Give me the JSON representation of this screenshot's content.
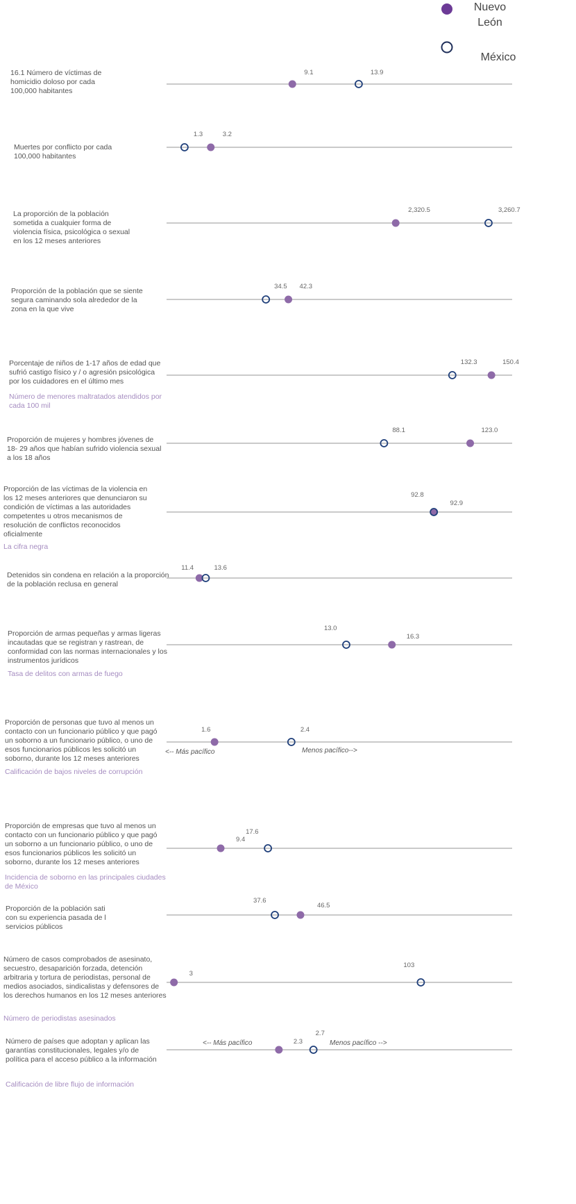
{
  "legend": [
    "Nuevo León",
    "México"
  ],
  "rows": [
    {
      "label": "16.1 Número de víctimas de homicidio doloso por cada 100,000 habitantes",
      "values": [
        9.1,
        13.9
      ],
      "xlim": [
        0,
        25
      ]
    },
    {
      "label": "Muertes por conflicto por cada 100,000 habitantes",
      "values": [
        3.2,
        1.3
      ],
      "xlim": [
        0,
        25
      ]
    },
    {
      "label": "La proporción de la población sometida a cualquier forma de violencia física, psicológica o sexual en los 12 meses anteriores",
      "values": [
        2320.5,
        3260.7
      ],
      "value_labels": [
        "2,320.5",
        "3,260.7"
      ],
      "xlim": [
        0,
        3500
      ]
    },
    {
      "label": "Proporción de la población que se siente segura caminando sola alrededor de la zona en la que vive",
      "values": [
        42.3,
        34.5
      ],
      "xlim": [
        0,
        120
      ]
    },
    {
      "label": "Porcentaje de niños de 1-17 años de edad que sufrió castigo físico y / o agresión psicológica por los cuidadores en el último mes",
      "sublabel": "Número de menores maltratados atendidos por cada 100 mil",
      "values": [
        150.4,
        132.3
      ],
      "xlim": [
        0,
        160
      ]
    },
    {
      "label": "Proporción de mujeres y hombres jóvenes de 18- 29 años que habían sufrido violencia sexual a los 18 años",
      "values": [
        123.0,
        88.1
      ],
      "value_labels": [
        "123.0",
        "88.1"
      ],
      "xlim": [
        0,
        140
      ]
    },
    {
      "label": "Proporción de las víctimas de la violencia en los 12 meses anteriores que denunciaron su condición de víctimas a las autoridades competentes u otros mecanismos de resolución de conflictos reconocidos oficialmente",
      "sublabel": "La cifra negra",
      "values": [
        92.9,
        92.8
      ],
      "xlim": [
        0,
        120
      ]
    },
    {
      "label": "Detenidos sin condena en relación a la proporción de la población reclusa en general",
      "values": [
        11.4,
        13.6
      ],
      "xlim": [
        0,
        120
      ]
    },
    {
      "label": "Proporción de armas pequeñas y armas ligeras incautadas que se registran y rastrean, de conformidad con las normas internacionales y los instrumentos jurídicos",
      "sublabel": "Tasa de delitos con armas de fuego",
      "values": [
        16.3,
        13.0
      ],
      "value_labels": [
        "16.3",
        "13.0"
      ],
      "xlim": [
        0,
        25
      ]
    },
    {
      "label": "Proporción de personas que tuvo al menos un contacto con un funcionario público y que pagó un soborno a un funcionario público, o uno de esos funcionarios públicos les solicitó un soborno, durante los 12 meses anteriores",
      "sublabel": "Calificación de bajos niveles de corrupción",
      "values": [
        1.6,
        2.4
      ],
      "xlim": [
        1.1,
        4.7
      ],
      "annotations": [
        "<-- Más pacífico",
        "Menos pacífico-->"
      ]
    },
    {
      "label": "Proporción de empresas que tuvo al menos un contacto con un funcionario público y que pagó un soborno a un funcionario público, o uno de esos funcionarios públicos les solicitó un soborno, durante los 12 meses anteriores",
      "sublabel": "Incidencia de soborno en las principales ciudades de México",
      "values": [
        9.4,
        17.6
      ],
      "xlim": [
        0,
        60
      ]
    },
    {
      "label": "Proporción de la población sati con su experiencia pasada de l servicios públicos",
      "values": [
        46.5,
        37.6
      ],
      "xlim": [
        0,
        120
      ]
    },
    {
      "label": "Número de casos comprobados de asesinato, secuestro, desaparición forzada, detención arbitraria y tortura de periodistas, personal de medios asociados, sindicalistas y defensores de los derechos humanos en los 12 meses anteriores",
      "sublabel": "Número de periodistas asesinados",
      "values": [
        3,
        103
      ],
      "xlim": [
        0,
        140
      ]
    },
    {
      "label": "Número de países que adoptan y aplican las garantías constitucionales, legales y/o de política para el acceso público a la información",
      "sublabel": "Calificación de libre flujo de información",
      "values": [
        2.3,
        2.7
      ],
      "xlim": [
        1,
        5
      ],
      "annotations": [
        "<-- Más pacífico",
        "Menos pacífico  -->"
      ]
    }
  ]
}
